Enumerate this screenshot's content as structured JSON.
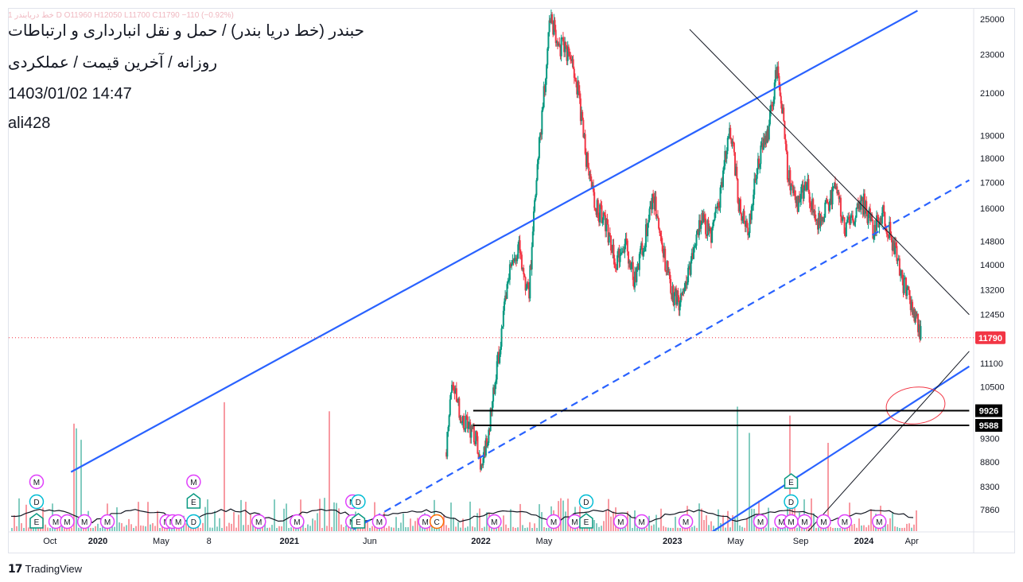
{
  "header": {
    "ohlc": "1 خط دریابندر  D  O11960  H12050  L11700  C11790  −110 (−0.92%)",
    "title": "حبندر (خط دریا بندر) / حمل و نقل انبارداری و ارتباطات",
    "subtitle": "روزانه / آخرین قیمت / عملکردی",
    "datetime": "1403/01/02 14:47",
    "author": "ali428"
  },
  "branding": {
    "name": "TradingView",
    "logo": "tradingview-logo"
  },
  "chart_data": {
    "type": "candlestick",
    "scale": "log",
    "y_ticks": [
      25000,
      23000,
      21000,
      19000,
      18000,
      17000,
      16000,
      14800,
      14000,
      13200,
      12450,
      11100,
      10500,
      9300,
      8800,
      8300,
      7860
    ],
    "x_ticks": [
      "Oct",
      "2020",
      "May",
      "8",
      "2021",
      "Jun",
      "2022",
      "May",
      "2023",
      "May",
      "Sep",
      "2024",
      "Apr"
    ],
    "x_tick_years": [
      2019.75,
      2020.0,
      2020.33,
      2020.58,
      2021.0,
      2021.42,
      2022.0,
      2022.33,
      2023.0,
      2023.33,
      2023.67,
      2024.0,
      2024.25
    ],
    "price_range": [
      7500,
      25500
    ],
    "last_price": {
      "value": "11790",
      "color": "#f23645"
    },
    "levels": [
      {
        "label": "9926",
        "value": 9926,
        "from": 2021.96,
        "to": 2024.55
      },
      {
        "label": "9588",
        "value": 9588,
        "from": 2021.96,
        "to": 2024.55
      }
    ],
    "trendlines": [
      {
        "name": "upper-channel",
        "color": "#2962ff",
        "style": "solid",
        "p1": [
          2019.86,
          8590
        ],
        "p2": [
          2024.28,
          25500
        ]
      },
      {
        "name": "middle-channel",
        "color": "#2962ff",
        "style": "dashed",
        "p1": [
          2021.28,
          7400
        ],
        "p2": [
          2024.55,
          17100
        ]
      },
      {
        "name": "lower-channel",
        "color": "#2962ff",
        "style": "solid",
        "p1": [
          2023.18,
          7400
        ],
        "p2": [
          2024.55,
          11020
        ]
      },
      {
        "name": "downtrend",
        "color": "#131722",
        "style": "solid",
        "p1": [
          2023.09,
          24400
        ],
        "p2": [
          2024.55,
          12450
        ]
      },
      {
        "name": "uptrend",
        "color": "#131722",
        "style": "solid",
        "p1": [
          2023.69,
          7400
        ],
        "p2": [
          2024.55,
          11420
        ]
      }
    ],
    "price_path": [
      [
        2021.82,
        9000
      ],
      [
        2021.85,
        10500
      ],
      [
        2021.9,
        9800
      ],
      [
        2021.97,
        9400
      ],
      [
        2022.0,
        8500
      ],
      [
        2022.05,
        9800
      ],
      [
        2022.1,
        11500
      ],
      [
        2022.15,
        13800
      ],
      [
        2022.2,
        14500
      ],
      [
        2022.25,
        13000
      ],
      [
        2022.3,
        18000
      ],
      [
        2022.33,
        21000
      ],
      [
        2022.36,
        25200
      ],
      [
        2022.4,
        23600
      ],
      [
        2022.45,
        23200
      ],
      [
        2022.5,
        21500
      ],
      [
        2022.55,
        18000
      ],
      [
        2022.6,
        16000
      ],
      [
        2022.65,
        15500
      ],
      [
        2022.7,
        14000
      ],
      [
        2022.75,
        14800
      ],
      [
        2022.8,
        13500
      ],
      [
        2022.85,
        14700
      ],
      [
        2022.9,
        16500
      ],
      [
        2022.95,
        14500
      ],
      [
        2023.0,
        13000
      ],
      [
        2023.05,
        12800
      ],
      [
        2023.1,
        14000
      ],
      [
        2023.15,
        15800
      ],
      [
        2023.2,
        15000
      ],
      [
        2023.25,
        16500
      ],
      [
        2023.3,
        19500
      ],
      [
        2023.35,
        16000
      ],
      [
        2023.4,
        15300
      ],
      [
        2023.45,
        18000
      ],
      [
        2023.5,
        19000
      ],
      [
        2023.55,
        22500
      ],
      [
        2023.6,
        17500
      ],
      [
        2023.65,
        16000
      ],
      [
        2023.7,
        17000
      ],
      [
        2023.75,
        15500
      ],
      [
        2023.8,
        16000
      ],
      [
        2023.85,
        16800
      ],
      [
        2023.9,
        15300
      ],
      [
        2023.95,
        15800
      ],
      [
        2024.0,
        16200
      ],
      [
        2024.05,
        15200
      ],
      [
        2024.1,
        15800
      ],
      [
        2024.15,
        14800
      ],
      [
        2024.2,
        13500
      ],
      [
        2024.25,
        12800
      ],
      [
        2024.3,
        11790
      ]
    ],
    "events": [
      {
        "type": "M",
        "color": "#e040fb",
        "x": 2019.68,
        "row": 0
      },
      {
        "type": "D",
        "color": "#00bcd4",
        "x": 2019.68,
        "row": 1
      },
      {
        "type": "E",
        "color": "#089981",
        "x": 2019.68,
        "row": 2
      },
      {
        "type": "M",
        "color": "#e040fb",
        "x": 2019.78,
        "row": 2
      },
      {
        "type": "M",
        "color": "#e040fb",
        "x": 2019.84,
        "row": 2
      },
      {
        "type": "M",
        "color": "#e040fb",
        "x": 2019.93,
        "row": 2
      },
      {
        "type": "M",
        "color": "#e040fb",
        "x": 2020.05,
        "row": 2
      },
      {
        "type": "M",
        "color": "#e040fb",
        "x": 2020.36,
        "row": 2
      },
      {
        "type": "M",
        "color": "#e040fb",
        "x": 2020.39,
        "row": 2
      },
      {
        "type": "M",
        "color": "#e040fb",
        "x": 2020.42,
        "row": 2
      },
      {
        "type": "M",
        "color": "#e040fb",
        "x": 2020.5,
        "row": 0
      },
      {
        "type": "E",
        "color": "#089981",
        "x": 2020.5,
        "row": 1
      },
      {
        "type": "D",
        "color": "#00bcd4",
        "x": 2020.5,
        "row": 2
      },
      {
        "type": "M",
        "color": "#e040fb",
        "x": 2020.84,
        "row": 2
      },
      {
        "type": "M",
        "color": "#e040fb",
        "x": 2021.04,
        "row": 2
      },
      {
        "type": "M",
        "color": "#e040fb",
        "x": 2021.33,
        "row": 1
      },
      {
        "type": "D",
        "color": "#00bcd4",
        "x": 2021.36,
        "row": 1
      },
      {
        "type": "M",
        "color": "#e040fb",
        "x": 2021.33,
        "row": 2
      },
      {
        "type": "E",
        "color": "#089981",
        "x": 2021.36,
        "row": 2
      },
      {
        "type": "M",
        "color": "#e040fb",
        "x": 2021.47,
        "row": 2
      },
      {
        "type": "M",
        "color": "#e040fb",
        "x": 2021.71,
        "row": 2
      },
      {
        "type": "C",
        "color": "#ff6d00",
        "x": 2021.77,
        "row": 2
      },
      {
        "type": "M",
        "color": "#e040fb",
        "x": 2022.07,
        "row": 2
      },
      {
        "type": "M",
        "color": "#e040fb",
        "x": 2022.38,
        "row": 2
      },
      {
        "type": "M",
        "color": "#e040fb",
        "x": 2022.49,
        "row": 2
      },
      {
        "type": "D",
        "color": "#00bcd4",
        "x": 2022.55,
        "row": 1
      },
      {
        "type": "E",
        "color": "#089981",
        "x": 2022.55,
        "row": 2
      },
      {
        "type": "M",
        "color": "#e040fb",
        "x": 2022.73,
        "row": 2
      },
      {
        "type": "M",
        "color": "#e040fb",
        "x": 2022.84,
        "row": 2
      },
      {
        "type": "M",
        "color": "#e040fb",
        "x": 2023.07,
        "row": 2
      },
      {
        "type": "M",
        "color": "#e040fb",
        "x": 2023.46,
        "row": 2
      },
      {
        "type": "M",
        "color": "#e040fb",
        "x": 2023.57,
        "row": 2
      },
      {
        "type": "M",
        "color": "#e040fb",
        "x": 2023.62,
        "row": 2
      },
      {
        "type": "E",
        "color": "#089981",
        "x": 2023.62,
        "row": 0
      },
      {
        "type": "D",
        "color": "#00bcd4",
        "x": 2023.62,
        "row": 1
      },
      {
        "type": "M",
        "color": "#e040fb",
        "x": 2023.62,
        "row": 2
      },
      {
        "type": "M",
        "color": "#e040fb",
        "x": 2023.69,
        "row": 2
      },
      {
        "type": "M",
        "color": "#e040fb",
        "x": 2023.79,
        "row": 2
      },
      {
        "type": "M",
        "color": "#e040fb",
        "x": 2023.9,
        "row": 2
      },
      {
        "type": "M",
        "color": "#e040fb",
        "x": 2024.08,
        "row": 2
      }
    ],
    "colors": {
      "up": "#089981",
      "down": "#f23645",
      "channel": "#2962ff",
      "annotation": "#f23645",
      "level": "#000000"
    }
  }
}
